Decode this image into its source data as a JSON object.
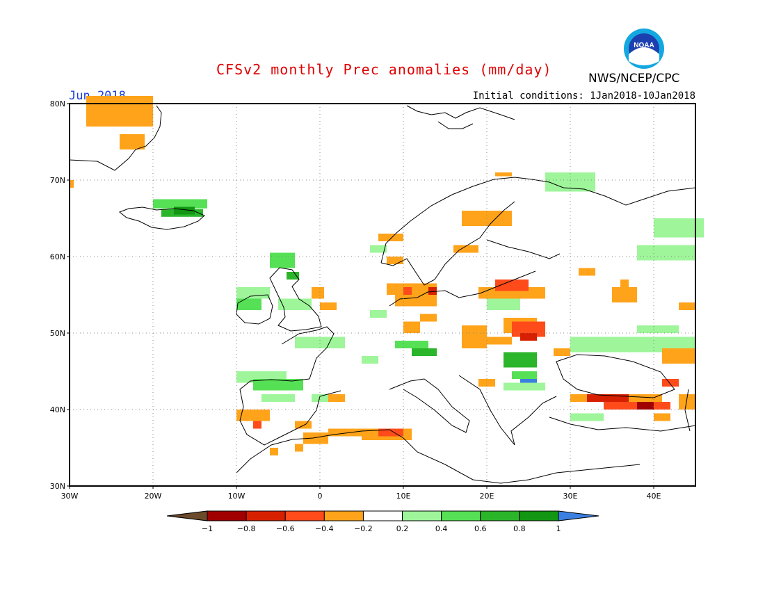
{
  "header": {
    "title": "CFSv2 monthly Prec anomalies (mm/day)",
    "month": "Jun 2018",
    "initial_conditions": "Initial conditions: 1Jan2018-10Jan2018",
    "agency": "NWS/NCEP/CPC",
    "logo_icon": "noaa-logo-icon",
    "logo_text": "NOAA"
  },
  "axes": {
    "lat_ticks": [
      {
        "value": 80,
        "label": "80N"
      },
      {
        "value": 70,
        "label": "70N"
      },
      {
        "value": 60,
        "label": "60N"
      },
      {
        "value": 50,
        "label": "50N"
      },
      {
        "value": 40,
        "label": "40N"
      },
      {
        "value": 30,
        "label": "30N"
      }
    ],
    "lon_ticks": [
      {
        "value": -30,
        "label": "30W"
      },
      {
        "value": -20,
        "label": "20W"
      },
      {
        "value": -10,
        "label": "10W"
      },
      {
        "value": 0,
        "label": "0"
      },
      {
        "value": 10,
        "label": "10E"
      },
      {
        "value": 20,
        "label": "20E"
      },
      {
        "value": 30,
        "label": "30E"
      },
      {
        "value": 40,
        "label": "40E"
      }
    ],
    "lon_range": [
      -30,
      45
    ],
    "lat_range": [
      30,
      80
    ],
    "grid": true
  },
  "colorbar": {
    "ticks": [
      "-1",
      "-0.8",
      "-0.6",
      "-0.4",
      "-0.2",
      "0.2",
      "0.4",
      "0.6",
      "0.8",
      "1"
    ],
    "classes": [
      {
        "range": "< -1",
        "color": "#6b4a2b"
      },
      {
        "range": "-1 to -0.8",
        "color": "#a10000"
      },
      {
        "range": "-0.8 to -0.6",
        "color": "#d62000"
      },
      {
        "range": "-0.6 to -0.4",
        "color": "#ff4b1a"
      },
      {
        "range": "-0.4 to -0.2",
        "color": "#ffa31a"
      },
      {
        "range": "-0.2 to 0.2",
        "color": "#ffffff"
      },
      {
        "range": "0.2 to 0.4",
        "color": "#9ef59a"
      },
      {
        "range": "0.4 to 0.6",
        "color": "#55e055"
      },
      {
        "range": "0.6 to 0.8",
        "color": "#2bb52b"
      },
      {
        "range": "0.8 to 1",
        "color": "#139613"
      },
      {
        "range": "> 1",
        "color": "#3b7fe0"
      }
    ]
  },
  "anomaly_cells": [
    {
      "lon": -28,
      "lat": 77,
      "w": 8,
      "h": 4,
      "c": 4
    },
    {
      "lon": -24,
      "lat": 74,
      "w": 3,
      "h": 2,
      "c": 4
    },
    {
      "lon": -30,
      "lat": 69,
      "w": 0.5,
      "h": 1,
      "c": 4
    },
    {
      "lon": -20,
      "lat": 66.3,
      "w": 6.5,
      "h": 1.2,
      "c": 7
    },
    {
      "lon": -19,
      "lat": 65.2,
      "w": 5,
      "h": 1,
      "c": 8
    },
    {
      "lon": -17.5,
      "lat": 65.5,
      "w": 2.5,
      "h": 1,
      "c": 9
    },
    {
      "lon": -10,
      "lat": 54.5,
      "w": 4,
      "h": 1.5,
      "c": 6
    },
    {
      "lon": -10,
      "lat": 53,
      "w": 3,
      "h": 1.5,
      "c": 7
    },
    {
      "lon": -6,
      "lat": 58.5,
      "w": 3,
      "h": 2,
      "c": 7
    },
    {
      "lon": -4,
      "lat": 57,
      "w": 1.5,
      "h": 1,
      "c": 8
    },
    {
      "lon": -5,
      "lat": 53,
      "w": 4,
      "h": 1.5,
      "c": 6
    },
    {
      "lon": -1,
      "lat": 54.5,
      "w": 1.5,
      "h": 1.5,
      "c": 4
    },
    {
      "lon": 0,
      "lat": 53,
      "w": 2,
      "h": 1,
      "c": 4
    },
    {
      "lon": -3,
      "lat": 48,
      "w": 6,
      "h": 1.5,
      "c": 6
    },
    {
      "lon": 6,
      "lat": 52,
      "w": 2,
      "h": 1,
      "c": 6
    },
    {
      "lon": 8,
      "lat": 55,
      "w": 4,
      "h": 1.5,
      "c": 4
    },
    {
      "lon": 9,
      "lat": 53.5,
      "w": 5,
      "h": 3,
      "c": 4
    },
    {
      "lon": 13,
      "lat": 55,
      "w": 1,
      "h": 1,
      "c": 2
    },
    {
      "lon": 10,
      "lat": 55,
      "w": 1,
      "h": 1,
      "c": 3
    },
    {
      "lon": 10,
      "lat": 50,
      "w": 2,
      "h": 1.5,
      "c": 4
    },
    {
      "lon": 12,
      "lat": 51.5,
      "w": 2,
      "h": 1,
      "c": 4
    },
    {
      "lon": 9,
      "lat": 48,
      "w": 4,
      "h": 1,
      "c": 7
    },
    {
      "lon": 11,
      "lat": 47,
      "w": 3,
      "h": 1,
      "c": 8
    },
    {
      "lon": 5,
      "lat": 46,
      "w": 2,
      "h": 1,
      "c": 6
    },
    {
      "lon": -10,
      "lat": 43.5,
      "w": 6,
      "h": 1.5,
      "c": 6
    },
    {
      "lon": -8,
      "lat": 42.5,
      "w": 6,
      "h": 1.5,
      "c": 7
    },
    {
      "lon": -7,
      "lat": 41,
      "w": 4,
      "h": 1,
      "c": 6
    },
    {
      "lon": -1,
      "lat": 41,
      "w": 2,
      "h": 1,
      "c": 6
    },
    {
      "lon": 1,
      "lat": 41,
      "w": 2,
      "h": 1,
      "c": 4
    },
    {
      "lon": -10,
      "lat": 38.5,
      "w": 4,
      "h": 1.5,
      "c": 4
    },
    {
      "lon": -8,
      "lat": 37.5,
      "w": 1,
      "h": 1,
      "c": 3
    },
    {
      "lon": -3,
      "lat": 37.5,
      "w": 2,
      "h": 1,
      "c": 4
    },
    {
      "lon": -2,
      "lat": 35.5,
      "w": 3,
      "h": 1.5,
      "c": 4
    },
    {
      "lon": 1,
      "lat": 36.5,
      "w": 10,
      "h": 1,
      "c": 4
    },
    {
      "lon": 5,
      "lat": 36,
      "w": 6,
      "h": 1,
      "c": 4
    },
    {
      "lon": 7,
      "lat": 36.5,
      "w": 3,
      "h": 1,
      "c": 3
    },
    {
      "lon": -6,
      "lat": 34,
      "w": 1,
      "h": 1,
      "c": 4
    },
    {
      "lon": -3,
      "lat": 34.5,
      "w": 1,
      "h": 1,
      "c": 4
    },
    {
      "lon": 7,
      "lat": 62,
      "w": 3,
      "h": 1,
      "c": 4
    },
    {
      "lon": 6,
      "lat": 60.5,
      "w": 2,
      "h": 1,
      "c": 6
    },
    {
      "lon": 8,
      "lat": 59,
      "w": 2,
      "h": 1,
      "c": 4
    },
    {
      "lon": 16,
      "lat": 60.5,
      "w": 3,
      "h": 1,
      "c": 4
    },
    {
      "lon": 17,
      "lat": 64,
      "w": 6,
      "h": 2,
      "c": 4
    },
    {
      "lon": 21,
      "lat": 70.5,
      "w": 2,
      "h": 0.5,
      "c": 4
    },
    {
      "lon": 27,
      "lat": 68.5,
      "w": 6,
      "h": 2.5,
      "c": 6
    },
    {
      "lon": 40,
      "lat": 62.5,
      "w": 6,
      "h": 2.5,
      "c": 6
    },
    {
      "lon": 38,
      "lat": 59.5,
      "w": 7,
      "h": 2,
      "c": 6
    },
    {
      "lon": 31,
      "lat": 57.5,
      "w": 2,
      "h": 1,
      "c": 4
    },
    {
      "lon": 36,
      "lat": 56,
      "w": 1,
      "h": 1,
      "c": 4
    },
    {
      "lon": 19,
      "lat": 54.5,
      "w": 8,
      "h": 1.5,
      "c": 4
    },
    {
      "lon": 21,
      "lat": 55.5,
      "w": 4,
      "h": 1.5,
      "c": 3
    },
    {
      "lon": 35,
      "lat": 54,
      "w": 3,
      "h": 2,
      "c": 4
    },
    {
      "lon": 43,
      "lat": 53,
      "w": 2,
      "h": 1,
      "c": 4
    },
    {
      "lon": 22,
      "lat": 50,
      "w": 4,
      "h": 2,
      "c": 4
    },
    {
      "lon": 23,
      "lat": 49.5,
      "w": 4,
      "h": 2,
      "c": 3
    },
    {
      "lon": 24,
      "lat": 49,
      "w": 2,
      "h": 1,
      "c": 2
    },
    {
      "lon": 20,
      "lat": 48.5,
      "w": 3,
      "h": 1,
      "c": 4
    },
    {
      "lon": 17,
      "lat": 48,
      "w": 3,
      "h": 3,
      "c": 4
    },
    {
      "lon": 20,
      "lat": 53,
      "w": 4,
      "h": 1.5,
      "c": 6
    },
    {
      "lon": 30,
      "lat": 47.5,
      "w": 15,
      "h": 2,
      "c": 6
    },
    {
      "lon": 38,
      "lat": 50,
      "w": 5,
      "h": 1,
      "c": 6
    },
    {
      "lon": 41,
      "lat": 46,
      "w": 4,
      "h": 2,
      "c": 4
    },
    {
      "lon": 22,
      "lat": 45.5,
      "w": 4,
      "h": 2,
      "c": 8
    },
    {
      "lon": 23,
      "lat": 44,
      "w": 3,
      "h": 1,
      "c": 7
    },
    {
      "lon": 24,
      "lat": 43,
      "w": 2,
      "h": 1,
      "c": 10
    },
    {
      "lon": 22,
      "lat": 42.5,
      "w": 5,
      "h": 1,
      "c": 6
    },
    {
      "lon": 19,
      "lat": 43,
      "w": 2,
      "h": 1,
      "c": 4
    },
    {
      "lon": 28,
      "lat": 47,
      "w": 2,
      "h": 1,
      "c": 4
    },
    {
      "lon": 30,
      "lat": 41,
      "w": 11,
      "h": 1,
      "c": 4
    },
    {
      "lon": 32,
      "lat": 41,
      "w": 5,
      "h": 1,
      "c": 2
    },
    {
      "lon": 34,
      "lat": 40,
      "w": 8,
      "h": 1,
      "c": 3
    },
    {
      "lon": 38,
      "lat": 40,
      "w": 2,
      "h": 1,
      "c": 1
    },
    {
      "lon": 41,
      "lat": 43,
      "w": 2,
      "h": 1,
      "c": 3
    },
    {
      "lon": 43,
      "lat": 40,
      "w": 2,
      "h": 2,
      "c": 4
    },
    {
      "lon": 30,
      "lat": 38.5,
      "w": 4,
      "h": 1,
      "c": 6
    },
    {
      "lon": 40,
      "lat": 38.5,
      "w": 2,
      "h": 1,
      "c": 4
    }
  ]
}
